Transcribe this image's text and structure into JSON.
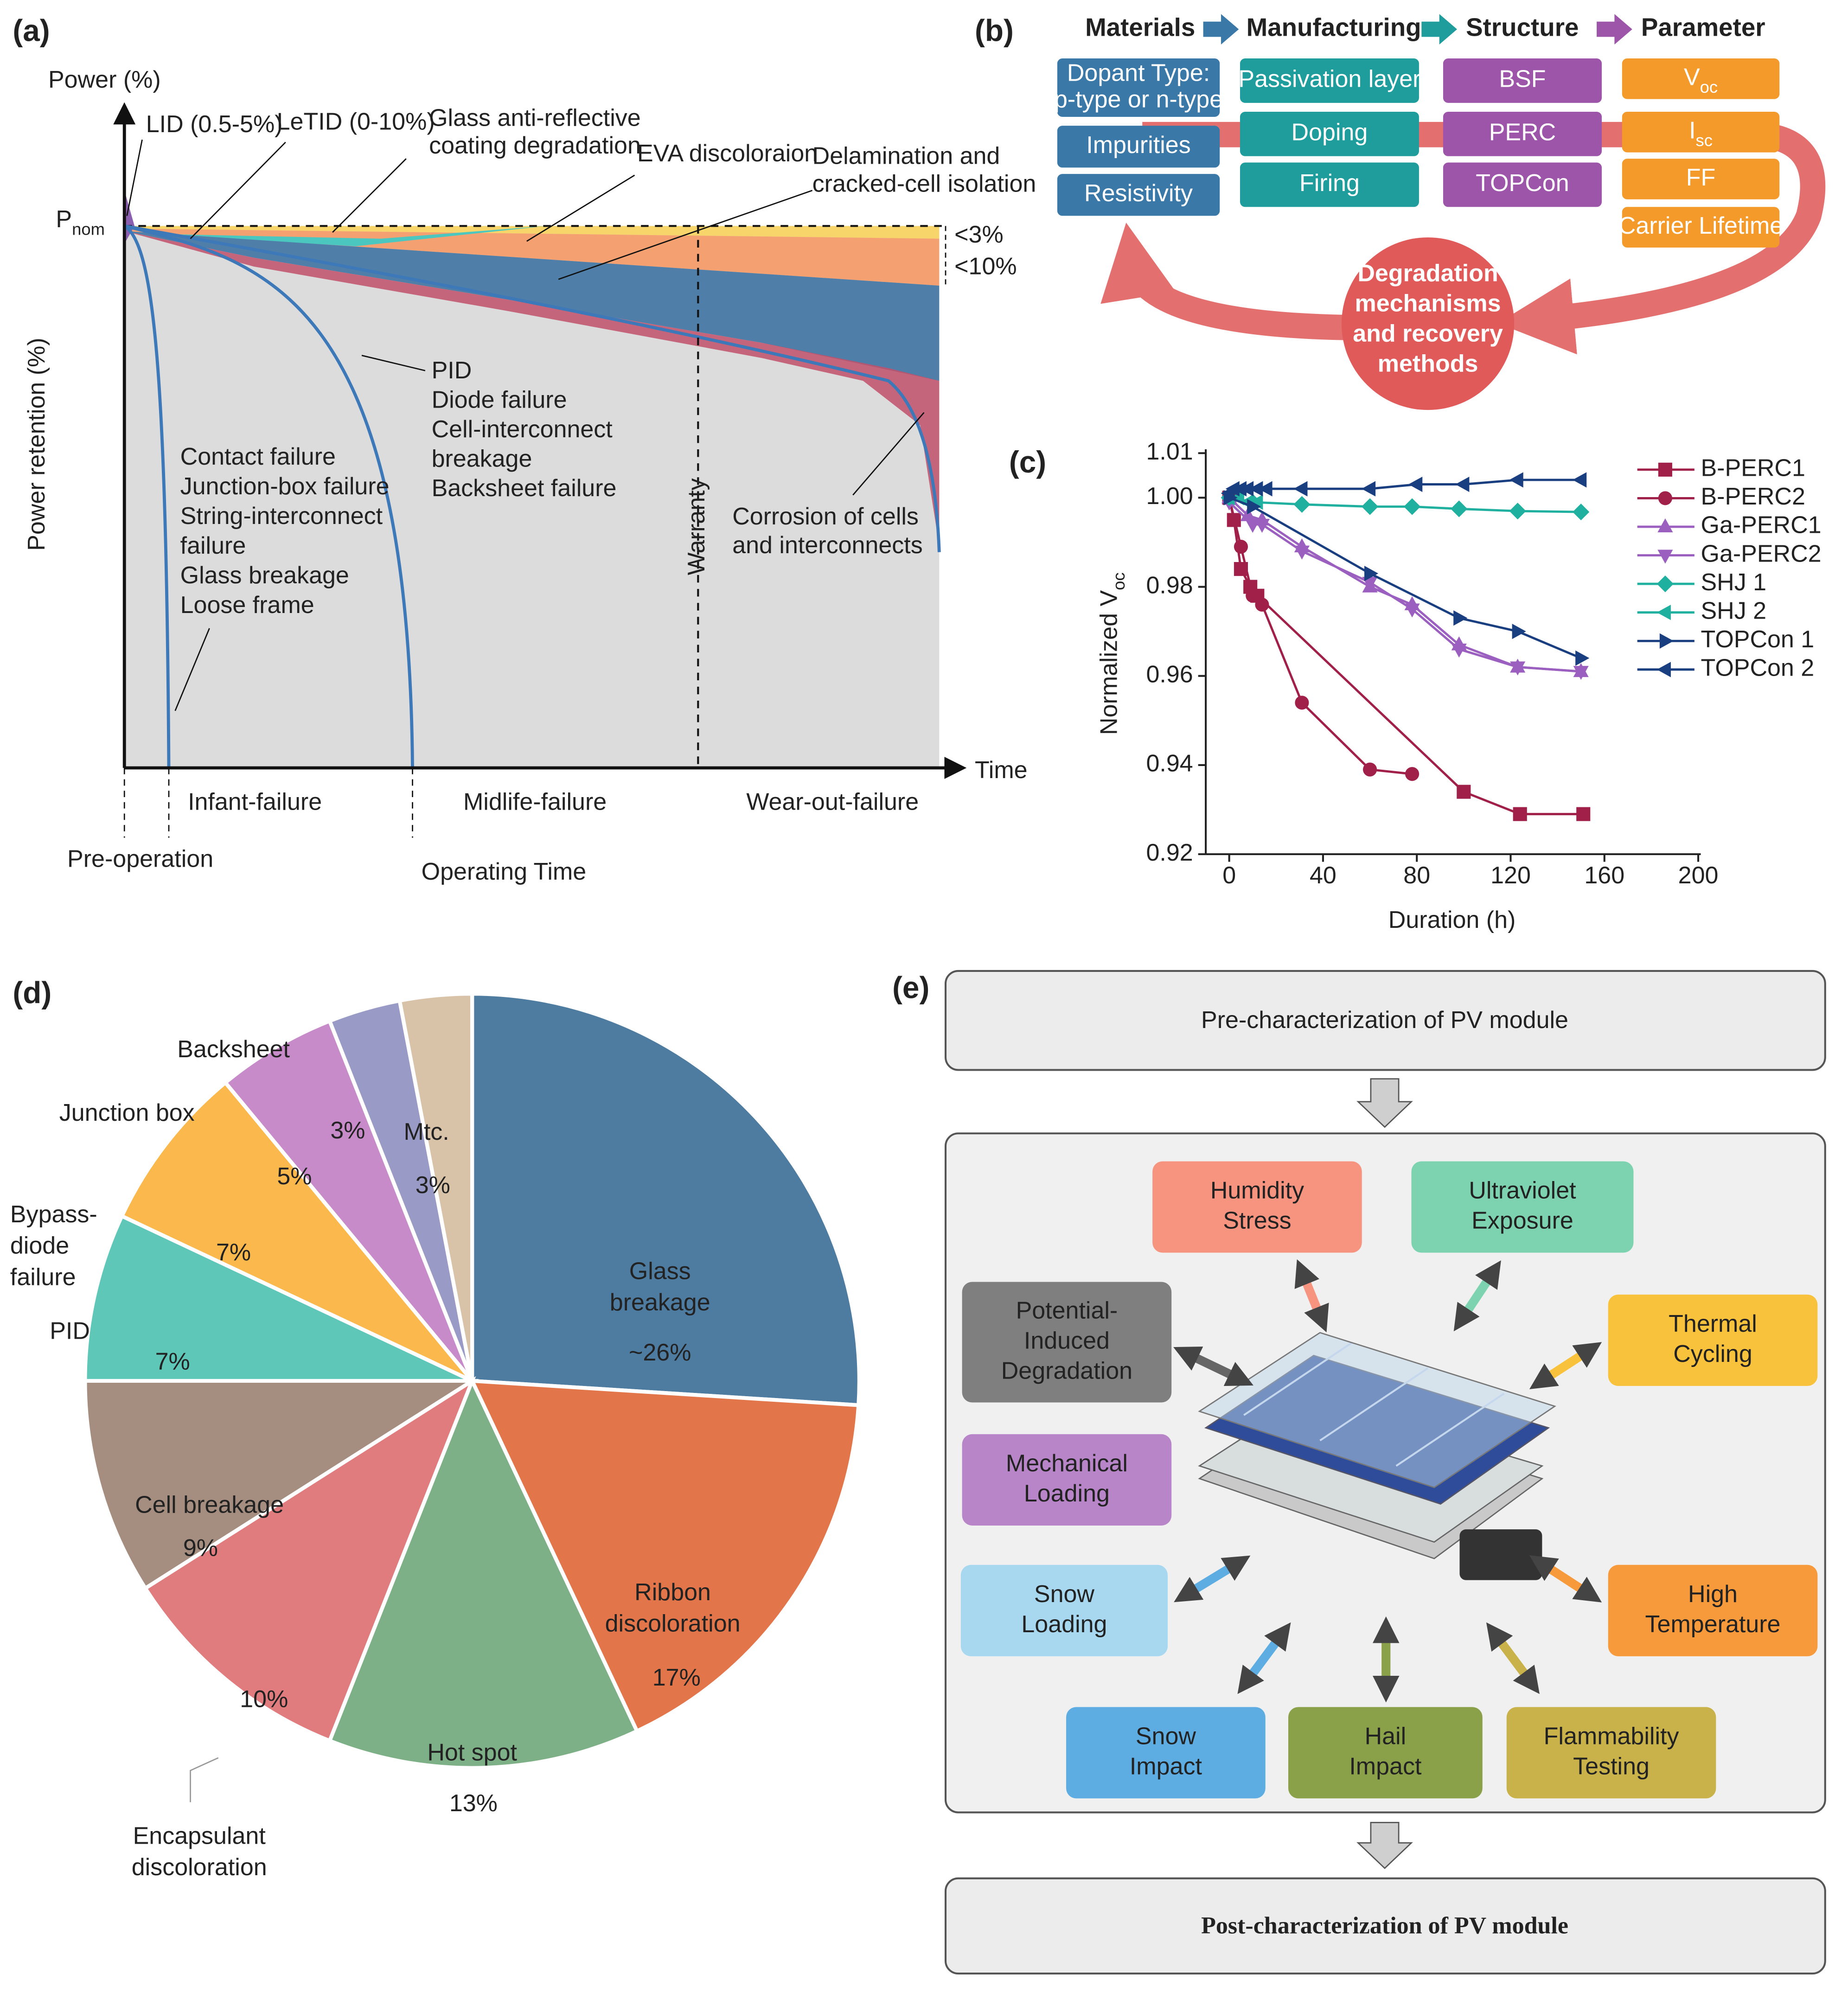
{
  "panel_a": {
    "panel_label": "(a)",
    "y_axis_top": "Power (%)",
    "p_nom": {
      "text": "P",
      "sub": "nom"
    },
    "y_label": "Power retention (%)",
    "x_axis_end": "Time",
    "x_label": "Operating Time",
    "lid": "LID (0.5-5%)",
    "letid": "LeTID (0-10%)",
    "glass_ar": "Glass anti-reflective\ncoating degradation",
    "eva": "EVA discoloraion",
    "delamination": "Delamination and\ncracked-cell isolation",
    "band_3": "<3%",
    "band_10": "<10%",
    "midlife_list": "PID\nDiode failure\nCell-interconnect\nbreakage\nBacksheet failure",
    "infant_list": "Contact failure\nJunction-box failure\nString-interconnect\nfailure\nGlass breakage\nLoose frame",
    "warranty": "Warranty",
    "corrosion": "Corrosion of cells\nand interconnects",
    "phases": [
      "Infant-failure",
      "Midlife-failure",
      "Wear-out-failure"
    ],
    "pre_operation": "Pre-operation"
  },
  "panel_b": {
    "panel_label": "(b)",
    "headers": [
      "Materials",
      "Manufacturing",
      "Structure",
      "Parameter"
    ],
    "materials": [
      "Dopant Type:\np-type or n-type",
      "Impurities",
      "Resistivity"
    ],
    "manufacturing": [
      "Passivation layer",
      "Doping",
      "Firing"
    ],
    "structure": [
      "BSF",
      "PERC",
      "TOPCon"
    ],
    "parameters": [
      {
        "text": "V",
        "sub": "oc"
      },
      {
        "text": "I",
        "sub": "sc"
      },
      "FF",
      "Carrier Lifetime"
    ],
    "center": "Degradation\nmechanisms\nand recovery\nmethods"
  },
  "panel_c": {
    "panel_label": "(c)"
  },
  "panel_d": {
    "panel_label": "(d)"
  },
  "panel_e": {
    "panel_label": "(e)",
    "top": "Pre-characterization of PV module",
    "stresses": [
      "Humidity\nStress",
      "Ultraviolet\nExposure",
      "Potential-\nInduced\nDegradation",
      "Thermal\nCycling",
      "Mechanical\nLoading",
      "Snow\nLoading",
      "High\nTemperature",
      "Snow\nImpact",
      "Hail\nImpact",
      "Flammability\nTesting"
    ],
    "colors": [
      "#f79480",
      "#7dd3b0",
      "#7f7f7f",
      "#f9c23c",
      "#b886c8",
      "#a8d8f0",
      "#f79a3c",
      "#5dade2",
      "#8aa14a",
      "#c9b24a"
    ],
    "bottom": "Post-characterization of PV module"
  },
  "chart_data": [
    {
      "type": "scatter",
      "xlabel": "Duration (h)",
      "ylabel": {
        "text": "Normalized V",
        "sub": "oc"
      },
      "xlim": [
        -10,
        200
      ],
      "ylim": [
        0.92,
        1.01
      ],
      "xticks": [
        0,
        40,
        80,
        120,
        160,
        200
      ],
      "yticks": [
        0.92,
        0.94,
        0.96,
        0.98,
        {
          "value": 1,
          "label": "1.00"
        },
        1.01
      ],
      "series": [
        {
          "name": "B-PERC1",
          "color": "#a0204a",
          "marker": "square",
          "x": [
            0,
            2,
            5,
            9,
            12,
            100,
            124,
            151
          ],
          "values": [
            1.0,
            0.995,
            0.984,
            0.98,
            0.978,
            0.934,
            0.929,
            0.929
          ]
        },
        {
          "name": "B-PERC2",
          "color": "#a0204a",
          "marker": "circle",
          "x": [
            0,
            5,
            10,
            14,
            31,
            60,
            78
          ],
          "values": [
            1.0,
            0.989,
            0.978,
            0.976,
            0.954,
            0.939,
            0.938
          ]
        },
        {
          "name": "Ga-PERC1",
          "color": "#9b5fc0",
          "marker": "triangle-up",
          "x": [
            0,
            8,
            14,
            31,
            60,
            78,
            98,
            123,
            150
          ],
          "values": [
            1.0,
            0.996,
            0.995,
            0.989,
            0.98,
            0.976,
            0.967,
            0.962,
            0.961
          ]
        },
        {
          "name": "Ga-PERC2",
          "color": "#9b5fc0",
          "marker": "triangle-down",
          "x": [
            0,
            10,
            14,
            31,
            60,
            78,
            98,
            123,
            150
          ],
          "values": [
            0.999,
            0.994,
            0.994,
            0.988,
            0.981,
            0.975,
            0.966,
            0.962,
            0.961
          ]
        },
        {
          "name": "SHJ 1",
          "color": "#20b0a0",
          "marker": "diamond",
          "x": [
            0,
            10,
            31,
            60,
            78,
            98,
            123,
            150
          ],
          "values": [
            1.0,
            0.999,
            0.9985,
            0.998,
            0.998,
            0.9975,
            0.997,
            0.9968
          ]
        },
        {
          "name": "SHJ 2",
          "color": "#20b0a0",
          "marker": "triangle-left",
          "x": [
            0,
            4,
            8,
            12
          ],
          "values": [
            1.0,
            1.0,
            0.999,
            0.999
          ]
        },
        {
          "name": "TOPCon 1",
          "color": "#1a3f80",
          "marker": "triangle-right",
          "x": [
            0,
            10,
            60,
            98,
            123,
            150
          ],
          "values": [
            1.0,
            0.998,
            0.983,
            0.973,
            0.97,
            0.964
          ]
        },
        {
          "name": "TOPCon 2",
          "color": "#1a3f80",
          "marker": "triangle-left",
          "x": [
            0,
            2,
            5,
            8,
            12,
            16,
            31,
            60,
            80,
            100,
            123,
            150
          ],
          "values": [
            1.001,
            1.002,
            1.002,
            1.002,
            1.002,
            1.002,
            1.002,
            1.002,
            1.003,
            1.003,
            1.004,
            1.004
          ]
        }
      ]
    },
    {
      "type": "pie",
      "categories": [
        "Glass\nbreakage",
        "Ribbon\ndiscoloration",
        "Hot spot",
        "Encapsulant\ndiscoloration",
        "Cell breakage",
        "PID",
        "Bypass-\ndiode\nfailure",
        "Junction box",
        "Backsheet",
        "Mtc."
      ],
      "values": [
        26,
        17,
        13,
        10,
        9,
        7,
        7,
        5,
        3,
        3
      ],
      "value_labels": [
        "~26%",
        "17%",
        "13%",
        "10%",
        "9%",
        "7%",
        "7%",
        "5%",
        "3%",
        "3%"
      ],
      "colors": [
        "#4e7ba0",
        "#e2764a",
        "#7eb087",
        "#e07b7e",
        "#a58e80",
        "#5ec7b8",
        "#fbb84c",
        "#c88bc9",
        "#9a9ac6",
        "#d8c2a8"
      ]
    }
  ]
}
